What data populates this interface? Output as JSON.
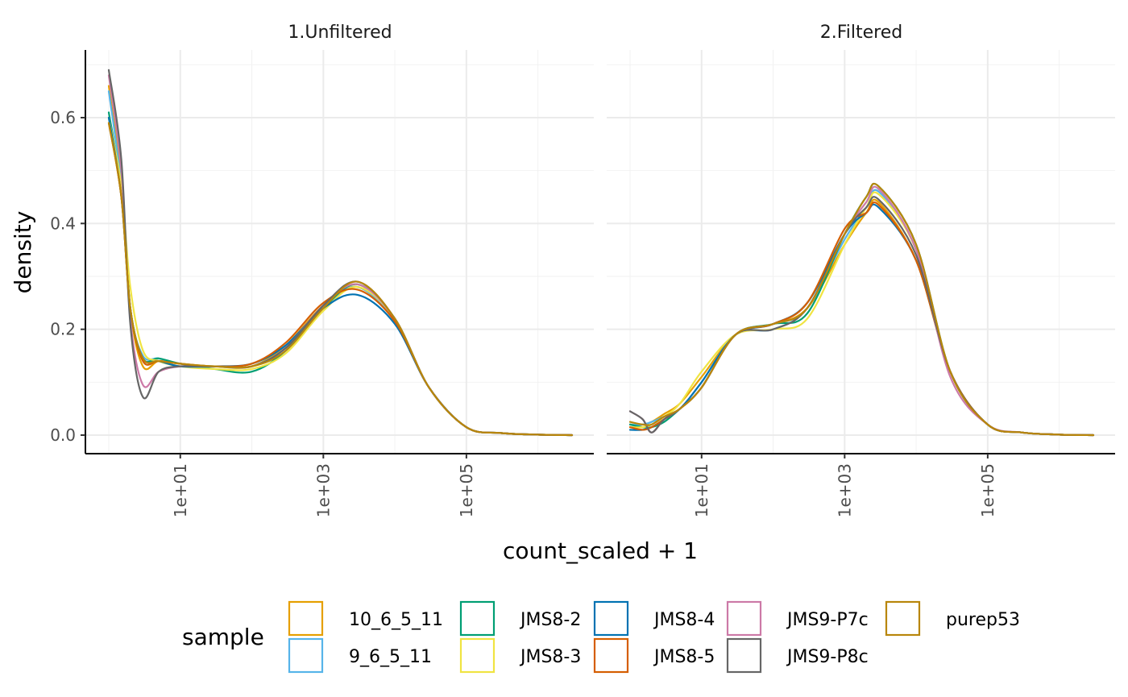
{
  "chart_data": {
    "type": "line",
    "ylabel": "density",
    "xlabel": "count_scaled + 1",
    "xscale": "log10",
    "xlim": [
      1,
      3000000
    ],
    "ylim": [
      0,
      0.7
    ],
    "x_ticks": [
      "1e+01",
      "1e+03",
      "1e+05"
    ],
    "y_ticks": [
      "0.0",
      "0.2",
      "0.4",
      "0.6"
    ],
    "grid": true,
    "legend_position": "bottom",
    "legend_title": "sample",
    "series_colors": [
      {
        "name": "10_6_5_11",
        "color": "#E69F00"
      },
      {
        "name": "9_6_5_11",
        "color": "#56B4E9"
      },
      {
        "name": "JMS8-2",
        "color": "#009E73"
      },
      {
        "name": "JMS8-3",
        "color": "#F0E442"
      },
      {
        "name": "JMS8-4",
        "color": "#0072B2"
      },
      {
        "name": "JMS8-5",
        "color": "#D55E00"
      },
      {
        "name": "JMS9-P7c",
        "color": "#CC79A7"
      },
      {
        "name": "JMS9-P8c",
        "color": "#666666"
      },
      {
        "name": "purep53",
        "color": "#B8860B"
      }
    ],
    "panels": [
      {
        "title": "1.Unfiltered",
        "x": [
          1,
          1.5,
          2,
          3,
          5,
          10,
          30,
          100,
          300,
          1000,
          3000,
          10000,
          30000,
          100000,
          300000,
          1000000,
          3000000
        ],
        "series": [
          {
            "name": "10_6_5_11",
            "values": [
              0.66,
              0.48,
              0.24,
              0.13,
              0.14,
              0.135,
              0.13,
              0.13,
              0.17,
              0.245,
              0.28,
              0.215,
              0.09,
              0.015,
              0.004,
              0.001,
              0
            ]
          },
          {
            "name": "9_6_5_11",
            "values": [
              0.65,
              0.47,
              0.24,
              0.15,
              0.145,
              0.135,
              0.13,
              0.13,
              0.165,
              0.24,
              0.28,
              0.215,
              0.09,
              0.015,
              0.004,
              0.001,
              0
            ]
          },
          {
            "name": "JMS8-2",
            "values": [
              0.61,
              0.46,
              0.24,
              0.145,
              0.145,
              0.135,
              0.125,
              0.12,
              0.16,
              0.24,
              0.285,
              0.22,
              0.09,
              0.015,
              0.004,
              0.001,
              0
            ]
          },
          {
            "name": "JMS8-3",
            "values": [
              0.6,
              0.47,
              0.28,
              0.16,
              0.14,
              0.13,
              0.125,
              0.125,
              0.155,
              0.235,
              0.28,
              0.22,
              0.09,
              0.015,
              0.004,
              0.001,
              0
            ]
          },
          {
            "name": "JMS8-4",
            "values": [
              0.6,
              0.45,
              0.24,
              0.145,
              0.14,
              0.13,
              0.13,
              0.135,
              0.17,
              0.24,
              0.265,
              0.21,
              0.09,
              0.015,
              0.004,
              0.001,
              0
            ]
          },
          {
            "name": "JMS8-5",
            "values": [
              0.59,
              0.45,
              0.24,
              0.14,
              0.14,
              0.135,
              0.13,
              0.135,
              0.175,
              0.25,
              0.275,
              0.215,
              0.09,
              0.015,
              0.004,
              0.001,
              0
            ]
          },
          {
            "name": "JMS9-P7c",
            "values": [
              0.68,
              0.5,
              0.22,
              0.095,
              0.12,
              0.13,
              0.13,
              0.13,
              0.165,
              0.245,
              0.285,
              0.22,
              0.09,
              0.015,
              0.004,
              0.001,
              0
            ]
          },
          {
            "name": "JMS9-P8c",
            "values": [
              0.69,
              0.52,
              0.21,
              0.072,
              0.12,
              0.13,
              0.13,
              0.13,
              0.165,
              0.245,
              0.29,
              0.22,
              0.09,
              0.015,
              0.004,
              0.001,
              0
            ]
          },
          {
            "name": "purep53",
            "values": [
              0.59,
              0.45,
              0.24,
              0.145,
              0.14,
              0.135,
              0.13,
              0.13,
              0.16,
              0.24,
              0.29,
              0.22,
              0.09,
              0.015,
              0.004,
              0.001,
              0
            ]
          }
        ]
      },
      {
        "title": "2.Filtered",
        "x": [
          1,
          1.5,
          2,
          3,
          5,
          10,
          30,
          100,
          300,
          1000,
          2000,
          3000,
          10000,
          30000,
          100000,
          300000,
          1000000,
          3000000
        ],
        "series": [
          {
            "name": "10_6_5_11",
            "values": [
              0.02,
              0.02,
              0.025,
              0.04,
              0.06,
              0.11,
              0.19,
              0.21,
              0.24,
              0.36,
              0.42,
              0.44,
              0.33,
              0.12,
              0.02,
              0.005,
              0.001,
              0
            ]
          },
          {
            "name": "9_6_5_11",
            "values": [
              0.02,
              0.02,
              0.025,
              0.035,
              0.05,
              0.1,
              0.19,
              0.2,
              0.24,
              0.37,
              0.43,
              0.46,
              0.35,
              0.12,
              0.02,
              0.005,
              0.001,
              0
            ]
          },
          {
            "name": "JMS8-2",
            "values": [
              0.02,
              0.015,
              0.015,
              0.025,
              0.05,
              0.09,
              0.19,
              0.21,
              0.23,
              0.38,
              0.45,
              0.47,
              0.36,
              0.12,
              0.02,
              0.005,
              0.001,
              0
            ]
          },
          {
            "name": "JMS8-3",
            "values": [
              0.015,
              0.015,
              0.02,
              0.035,
              0.06,
              0.12,
              0.19,
              0.2,
              0.22,
              0.36,
              0.43,
              0.455,
              0.35,
              0.12,
              0.02,
              0.005,
              0.001,
              0
            ]
          },
          {
            "name": "JMS8-4",
            "values": [
              0.01,
              0.01,
              0.015,
              0.03,
              0.05,
              0.1,
              0.19,
              0.21,
              0.25,
              0.38,
              0.42,
              0.43,
              0.33,
              0.12,
              0.02,
              0.005,
              0.001,
              0
            ]
          },
          {
            "name": "JMS8-5",
            "values": [
              0.015,
              0.01,
              0.015,
              0.03,
              0.05,
              0.09,
              0.19,
              0.21,
              0.25,
              0.39,
              0.42,
              0.435,
              0.33,
              0.12,
              0.02,
              0.005,
              0.001,
              0
            ]
          },
          {
            "name": "JMS9-P7c",
            "values": [
              0.045,
              0.03,
              0.005,
              0.03,
              0.05,
              0.09,
              0.19,
              0.21,
              0.24,
              0.38,
              0.44,
              0.465,
              0.35,
              0.11,
              0.02,
              0.005,
              0.001,
              0
            ]
          },
          {
            "name": "JMS9-P8c",
            "values": [
              0.045,
              0.03,
              0.005,
              0.03,
              0.05,
              0.09,
              0.19,
              0.2,
              0.24,
              0.38,
              0.43,
              0.445,
              0.34,
              0.12,
              0.02,
              0.005,
              0.001,
              0
            ]
          },
          {
            "name": "purep53",
            "values": [
              0.025,
              0.02,
              0.02,
              0.035,
              0.05,
              0.09,
              0.19,
              0.21,
              0.24,
              0.38,
              0.45,
              0.47,
              0.36,
              0.12,
              0.02,
              0.005,
              0.001,
              0
            ]
          }
        ]
      }
    ]
  }
}
